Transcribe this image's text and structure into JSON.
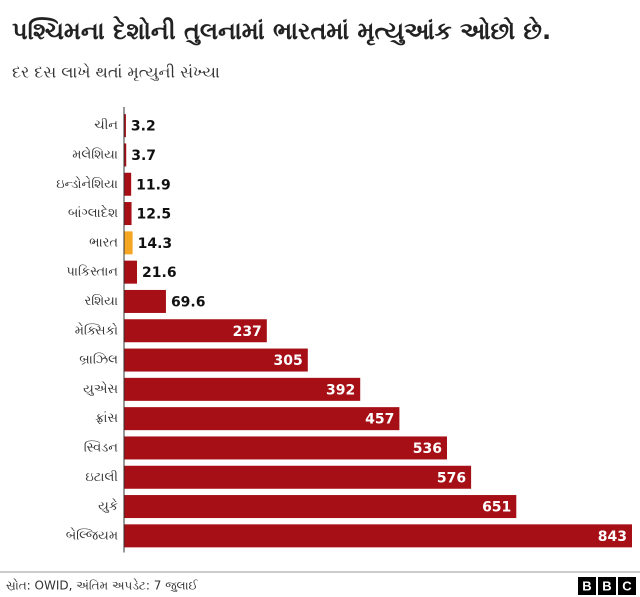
{
  "chart_data": {
    "type": "bar",
    "orientation": "horizontal",
    "title": "પશ્ચિમના દેશોની તુલનામાં ભારતમાં મૃત્યુઆંક ઓછો છે.",
    "subtitle": "દર દસ લાખે થતાં મૃત્યુની સંખ્યા",
    "categories": [
      "ચીન",
      "મલેશિયા",
      "ઇન્ડોનેશિયા",
      "બાંગ્લાદેશ",
      "ભારત",
      "પાકિસ્તાન",
      "રશિયા",
      "મેક્સિકો",
      "બ્રાઝિલ",
      "યુએસ",
      "ફ્રાંસ",
      "સ્વિડન",
      "ઇટાલી",
      "યુકે",
      "બેલ્જિયમ"
    ],
    "values": [
      3.2,
      3.7,
      11.9,
      12.5,
      14.3,
      21.6,
      69.6,
      237,
      305,
      392,
      457,
      536,
      576,
      651,
      843
    ],
    "colors": [
      "#a50f15",
      "#a50f15",
      "#a50f15",
      "#a50f15",
      "#f5a623",
      "#a50f15",
      "#a50f15",
      "#a50f15",
      "#a50f15",
      "#a50f15",
      "#a50f15",
      "#a50f15",
      "#a50f15",
      "#a50f15",
      "#a50f15"
    ],
    "source": "સ્રોત: OWID, અંતિમ અપડેટ: 7 જુલાઈ",
    "logo": [
      "B",
      "B",
      "C"
    ]
  }
}
